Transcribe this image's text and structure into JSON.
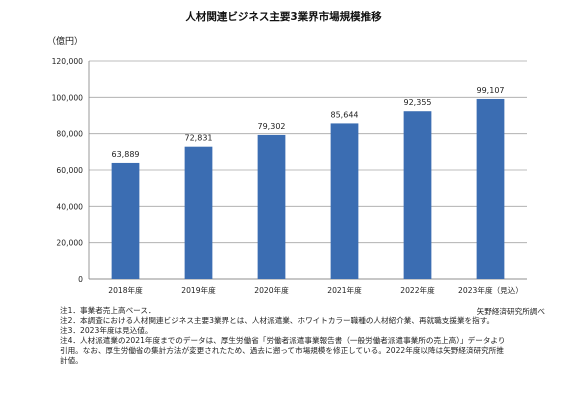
{
  "chart_data": {
    "type": "bar",
    "title": "人材関連ビジネス主要3業界市場規模推移",
    "unit_label": "（億円）",
    "categories": [
      "2018年度",
      "2019年度",
      "2020年度",
      "2021年度",
      "2022年度",
      "2023年度（見込）"
    ],
    "values": [
      63889,
      72831,
      79302,
      85644,
      92355,
      99107
    ],
    "data_labels": [
      "63,889",
      "72,831",
      "79,302",
      "85,644",
      "92,355",
      "99,107"
    ],
    "ylim": [
      0,
      120000
    ],
    "yticks": [
      0,
      20000,
      40000,
      60000,
      80000,
      100000,
      120000
    ],
    "ytick_labels": [
      "0",
      "20,000",
      "40,000",
      "60,000",
      "80,000",
      "100,000",
      "120,000"
    ],
    "grid": true,
    "bar_color": "#3b6db2",
    "grid_color": "#a6a6a6"
  },
  "source": "矢野経済研究所調べ",
  "notes": [
    "注1．事業者売上高ベース．",
    "注2．本調査における人材関連ビジネス主要3業界とは、人材派遣業、ホワイトカラー職種の人材紹介業、再就職支援業を指す。",
    "注3．2023年度は見込値。",
    "注4．人材派遣業の2021年度までのデータは、厚生労働省「労働者派遣事業報告書（一般労働者派遣事業所の売上高）」データより",
    "引用。なお、厚生労働省の集計方法が変更されたため、過去に遡って市場規模を修正している。2022年度以降は矢野経済研究所推",
    "計値。"
  ]
}
